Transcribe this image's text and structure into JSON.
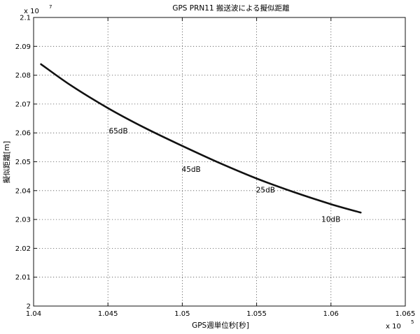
{
  "chart_data": {
    "type": "line",
    "title": "GPS PRN11 搬送波による擬似距離",
    "xlabel": "GPS週単位秒[秒]",
    "ylabel": "擬似距離[m]",
    "x_exponent": {
      "base": "x 10",
      "power": "5"
    },
    "y_exponent": {
      "base": "x 10",
      "power": "7"
    },
    "xlim": [
      1.04,
      1.065
    ],
    "ylim": [
      2.0,
      2.1
    ],
    "x_ticks": [
      "1.04",
      "1.045",
      "1.05",
      "1.055",
      "1.06",
      "1.065"
    ],
    "y_ticks": [
      "2",
      "2.01",
      "2.02",
      "2.03",
      "2.04",
      "2.05",
      "2.06",
      "2.07",
      "2.08",
      "2.09",
      "2.1"
    ],
    "grid": true,
    "series": [
      {
        "x": [
          1.0405,
          1.0425,
          1.045,
          1.0475,
          1.05,
          1.0525,
          1.055,
          1.0575,
          1.06,
          1.062
        ],
        "y": [
          2.0838,
          2.0765,
          2.0686,
          2.0617,
          2.0555,
          2.0496,
          2.0442,
          2.0395,
          2.0353,
          2.0324
        ]
      }
    ],
    "annotations": [
      {
        "text": "65dB",
        "x": 1.0457,
        "y": 2.0598
      },
      {
        "text": "45dB",
        "x": 1.0506,
        "y": 2.0465
      },
      {
        "text": "25dB",
        "x": 1.0556,
        "y": 2.0393
      },
      {
        "text": "10dB",
        "x": 1.06,
        "y": 2.0292
      }
    ]
  }
}
